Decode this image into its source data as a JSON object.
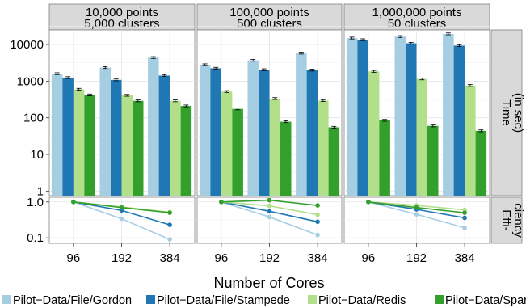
{
  "chart_data": {
    "type": "bar",
    "xlabel": "Number of Cores",
    "x_categories": [
      "96",
      "192",
      "384"
    ],
    "facet_labels": [
      [
        "10,000 points",
        "5,000 clusters"
      ],
      [
        "100,000 points",
        "500 clusters"
      ],
      [
        "1,000,000 points",
        "50 clusters"
      ]
    ],
    "row_labels": {
      "time": [
        "Time",
        "(in sec)"
      ],
      "efficiency": [
        "Effi-",
        "ciency"
      ]
    },
    "scale": "log10",
    "time_ylim": [
      0.75,
      25000
    ],
    "time_ticks": [
      "1",
      "10",
      "100",
      "1000",
      "10000"
    ],
    "efficiency_ylim": [
      0.07,
      1.35
    ],
    "efficiency_ticks": [
      "0.1",
      "1.0"
    ],
    "grid": true,
    "legend_position": "bottom",
    "series": [
      {
        "name": "Pilot−Data/File/Gordon",
        "color": "#a6cee3"
      },
      {
        "name": "Pilot−Data/File/Stampede",
        "color": "#1f78b4"
      },
      {
        "name": "Pilot−Data/Redis",
        "color": "#b2df8a"
      },
      {
        "name": "Pilot−Data/Spark",
        "color": "#33a02c"
      }
    ],
    "time_values": [
      [
        [
          1600,
          1250,
          600,
          420
        ],
        [
          2350,
          1080,
          410,
          290
        ],
        [
          4400,
          1420,
          290,
          210
        ]
      ],
      [
        [
          2800,
          2250,
          520,
          175
        ],
        [
          3700,
          2050,
          335,
          78
        ],
        [
          5800,
          2000,
          295,
          55
        ]
      ],
      [
        [
          15000,
          13500,
          1850,
          85
        ],
        [
          16500,
          10800,
          1150,
          60
        ],
        [
          19500,
          9300,
          760,
          44
        ]
      ]
    ],
    "efficiency_values": [
      [
        [
          1.0,
          0.34,
          0.09
        ],
        [
          1.0,
          0.58,
          0.23
        ],
        [
          1.0,
          0.72,
          0.52
        ],
        [
          1.0,
          0.7,
          0.5
        ]
      ],
      [
        [
          1.0,
          0.38,
          0.12
        ],
        [
          1.0,
          0.55,
          0.28
        ],
        [
          1.0,
          0.78,
          0.44
        ],
        [
          1.0,
          1.12,
          0.8
        ]
      ],
      [
        [
          1.0,
          0.45,
          0.19
        ],
        [
          1.0,
          0.62,
          0.36
        ],
        [
          1.0,
          0.8,
          0.6
        ],
        [
          1.0,
          0.7,
          0.5
        ]
      ]
    ]
  }
}
